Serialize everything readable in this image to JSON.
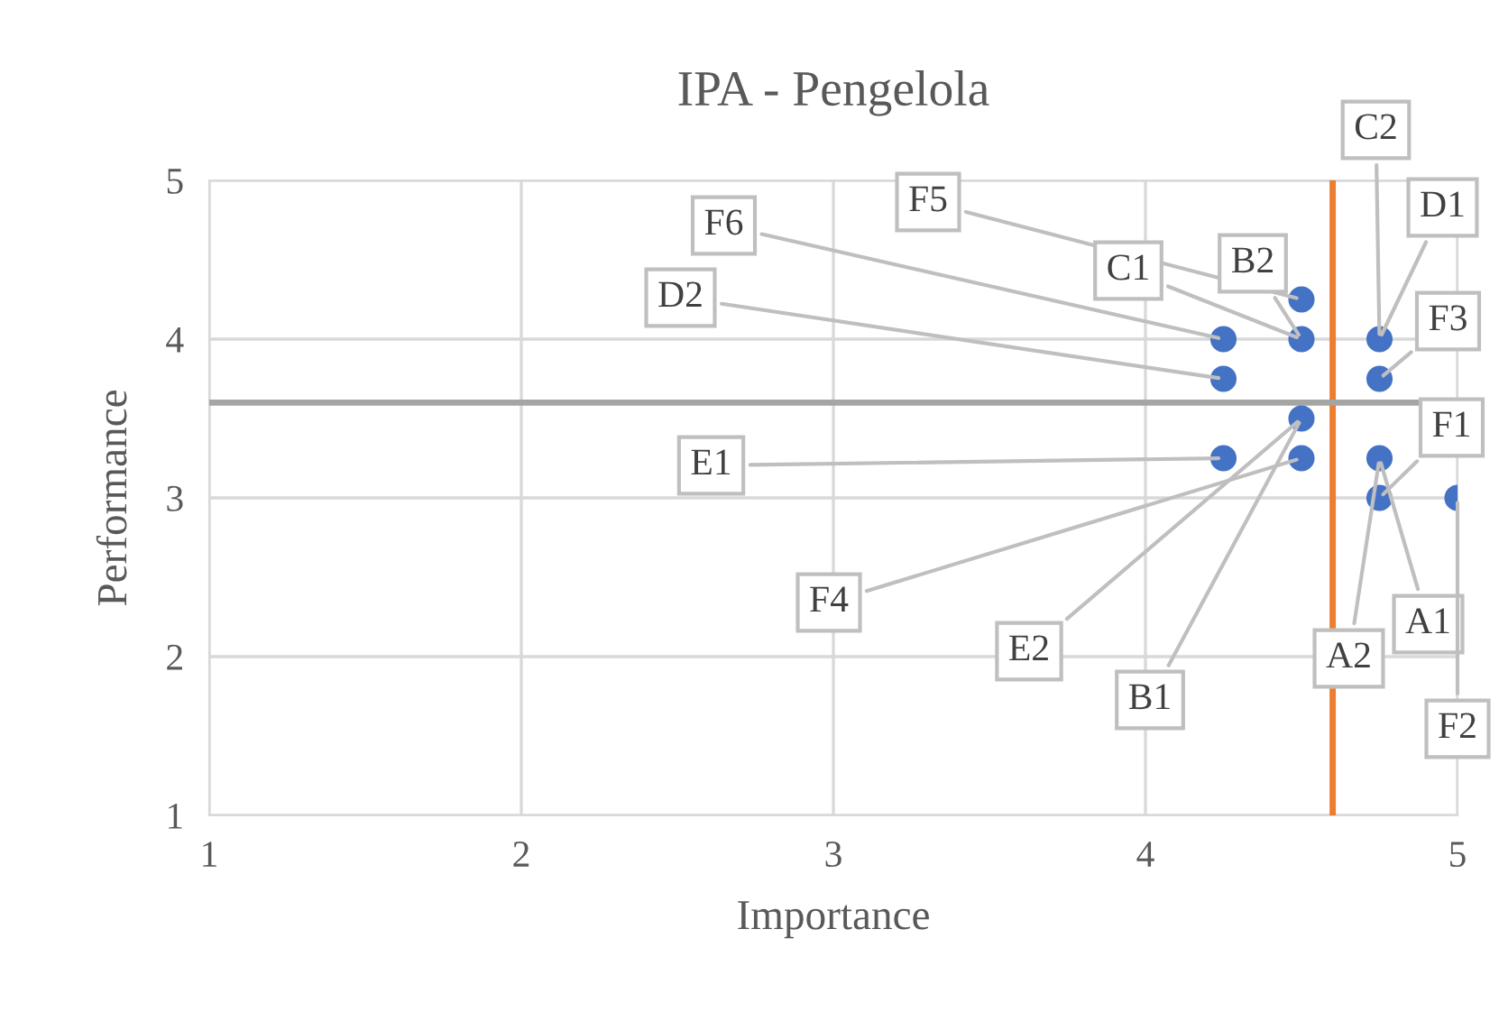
{
  "chart_data": {
    "type": "scatter",
    "title": "IPA - Pengelola",
    "xlabel": "Importance",
    "ylabel": "Performance",
    "series": [
      {
        "color": "#4472c4",
        "x": [
          4.5,
          4.25,
          4.5,
          4.75,
          4.25,
          4.75,
          4.5,
          4.25,
          4.5,
          4.75,
          4.75,
          5
        ],
        "values": [
          4.25,
          4,
          4,
          4,
          3.75,
          3.75,
          3.5,
          3.25,
          3.25,
          3.25,
          3,
          3
        ]
      }
    ],
    "xlim": [
      1,
      5
    ],
    "xticks": [
      1,
      2,
      3,
      4,
      5
    ],
    "ylim": [
      1,
      5
    ],
    "yticks": [
      1,
      2,
      3,
      4,
      5
    ],
    "grid": true,
    "marker": "circle",
    "ref_lines": [
      {
        "axis": "x",
        "value": 4.6,
        "color": "#ed7d31"
      },
      {
        "axis": "y",
        "value": 3.6,
        "color": "#a5a5a5"
      }
    ],
    "annotations": [
      {
        "text": "F5",
        "x": 4.5,
        "y": 4.25
      },
      {
        "text": "F6",
        "x": 4.25,
        "y": 4
      },
      {
        "text": "D2",
        "x": 4.25,
        "y": 3.75
      },
      {
        "text": "C1",
        "x": 4.5,
        "y": 4
      },
      {
        "text": "B2",
        "x": 4.5,
        "y": 4
      },
      {
        "text": "C2",
        "x": 4.75,
        "y": 4
      },
      {
        "text": "D1",
        "x": 4.75,
        "y": 4
      },
      {
        "text": "F3",
        "x": 4.75,
        "y": 3.75
      },
      {
        "text": "F1",
        "x": 4.75,
        "y": 3
      },
      {
        "text": "A1",
        "x": 4.75,
        "y": 3.25
      },
      {
        "text": "A2",
        "x": 4.75,
        "y": 3.25
      },
      {
        "text": "F2",
        "x": 5,
        "y": 3
      },
      {
        "text": "B1",
        "x": 4.5,
        "y": 3.5
      },
      {
        "text": "E2",
        "x": 4.5,
        "y": 3.5
      },
      {
        "text": "F4",
        "x": 4.5,
        "y": 3.25
      },
      {
        "text": "E1",
        "x": 4.25,
        "y": 3.25
      }
    ]
  }
}
